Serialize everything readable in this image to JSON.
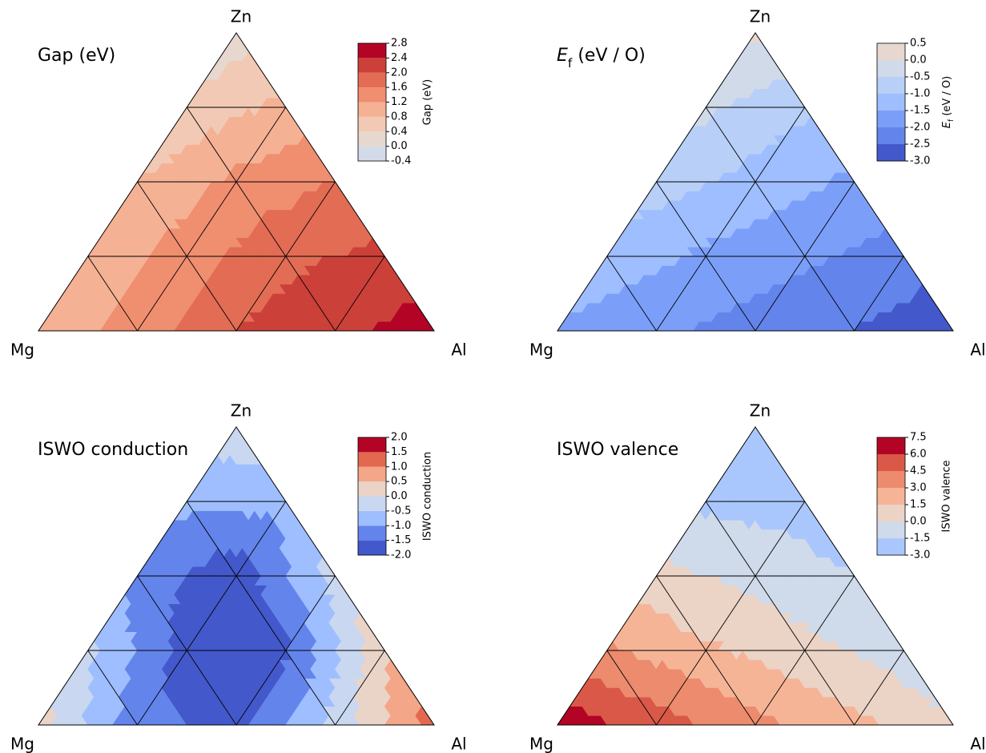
{
  "chart_data": [
    {
      "type": "ternary",
      "title": "Gap (eV)",
      "colorbar_label": "Gap (eV)",
      "corners": {
        "top": "Zn",
        "left": "Mg",
        "right": "Al"
      },
      "levels": [
        -0.4,
        {
          "value": 0,
          "label": "0.0"
        },
        0.4,
        0.8,
        1.2,
        1.6,
        {
          "value": 2,
          "label": "2.0"
        },
        2.4,
        2.8
      ],
      "colors": [
        "#d3dbe8",
        "#e6d7cf",
        "#f2c9b4",
        "#f5b194",
        "#f08e70",
        "#e36c55",
        "#cc403a",
        "#b40426"
      ],
      "values": [
        [
          0.9,
          1.4,
          2.0,
          2.3,
          2.6
        ],
        [
          0.9,
          1.4,
          1.9,
          2.1
        ],
        [
          0.8,
          1.3,
          1.6
        ],
        [
          0.5,
          0.9
        ],
        [
          0.2
        ]
      ]
    },
    {
      "type": "ternary",
      "title": [
        "E",
        "f",
        " (eV / O)"
      ],
      "colorbar_label": [
        "E",
        "f",
        " (eV / O)"
      ],
      "corners": {
        "top": "Zn",
        "left": "Mg",
        "right": "Al"
      },
      "levels": [
        {
          "value": -3,
          "label": "-3.0"
        },
        -2.5,
        {
          "value": -2,
          "label": "-2.0"
        },
        -1.5,
        {
          "value": -1,
          "label": "-1.0"
        },
        -0.5,
        {
          "value": 0,
          "label": "0.0"
        },
        0.5
      ],
      "colors": [
        "#4358cb",
        "#6384eb",
        "#7b9ff9",
        "#9ebeff",
        "#b8cff8",
        "#d0dae9",
        "#e6d7cf"
      ],
      "values": [
        [
          -1.6,
          -1.9,
          -2.2,
          -2.5,
          -2.9
        ],
        [
          -1.2,
          -1.6,
          -1.9,
          -2.2
        ],
        [
          -0.8,
          -1.2,
          -1.6
        ],
        [
          -0.4,
          -0.9
        ],
        [
          0.1
        ]
      ]
    },
    {
      "type": "ternary",
      "title": "ISWO conduction",
      "colorbar_label": "ISWO conduction",
      "corners": {
        "top": "Zn",
        "left": "Mg",
        "right": "Al"
      },
      "levels": [
        {
          "value": -2,
          "label": "-2.0"
        },
        -1.5,
        {
          "value": -1,
          "label": "-1.0"
        },
        -0.5,
        {
          "value": 0,
          "label": "0.0"
        },
        0.5,
        {
          "value": 1,
          "label": "1.0"
        },
        1.5,
        {
          "value": 2,
          "label": "2.0"
        }
      ],
      "colors": [
        "#4358cb",
        "#6384eb",
        "#9ebeff",
        "#c9d7f0",
        "#ead4c8",
        "#f4a688",
        "#e2694f",
        "#b40426"
      ],
      "values": [
        [
          0.2,
          -1.3,
          -1.7,
          -0.3,
          1.3
        ],
        [
          -0.4,
          -1.7,
          -1.6,
          0.4
        ],
        [
          -1.2,
          -1.8,
          -0.3
        ],
        [
          -0.9,
          -0.8
        ],
        [
          -0.2
        ]
      ]
    },
    {
      "type": "ternary",
      "title": "ISWO valence",
      "colorbar_label": "ISWO valence",
      "corners": {
        "top": "Zn",
        "left": "Mg",
        "right": "Al"
      },
      "levels": [
        {
          "value": -3,
          "label": "-3.0"
        },
        -1.5,
        {
          "value": 0,
          "label": "0.0"
        },
        1.5,
        {
          "value": 3,
          "label": "3.0"
        },
        4.5,
        {
          "value": 6,
          "label": "6.0"
        },
        7.5
      ],
      "colors": [
        "#aac7fd",
        "#cfdaea",
        "#ebd3c6",
        "#f6b497",
        "#ec8b6e",
        "#d95847",
        "#b40426"
      ],
      "values": [
        [
          7.0,
          5.2,
          3.5,
          1.9,
          0.2
        ],
        [
          3.3,
          1.8,
          0.5,
          -0.8
        ],
        [
          0.5,
          -0.5,
          -1.5
        ],
        [
          -1.8,
          -2.2
        ],
        [
          -2.5
        ]
      ]
    }
  ]
}
